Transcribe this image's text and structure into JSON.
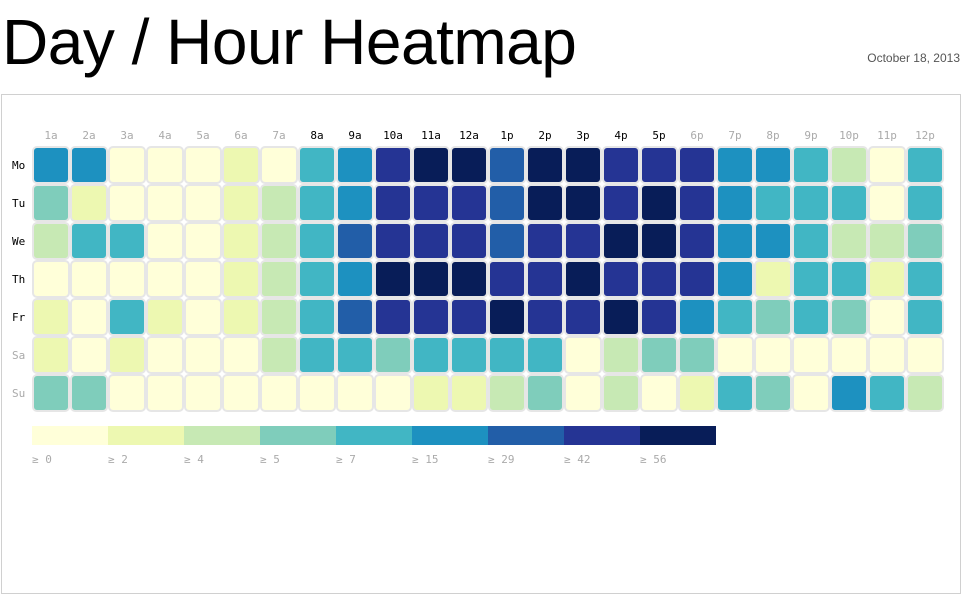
{
  "page": {
    "title": "Day / Hour Heatmap",
    "date": "October 18, 2013"
  },
  "chart_data": {
    "type": "heatmap",
    "title": "Day / Hour Heatmap",
    "x_labels": [
      "1a",
      "2a",
      "3a",
      "4a",
      "5a",
      "6a",
      "7a",
      "8a",
      "9a",
      "10a",
      "11a",
      "12a",
      "1p",
      "2p",
      "3p",
      "4p",
      "5p",
      "6p",
      "7p",
      "8p",
      "9p",
      "10p",
      "11p",
      "12p"
    ],
    "y_labels": [
      "Mo",
      "Tu",
      "We",
      "Th",
      "Fr",
      "Sa",
      "Su"
    ],
    "x_label_colors": [
      "#aaaaaa",
      "#aaaaaa",
      "#aaaaaa",
      "#aaaaaa",
      "#aaaaaa",
      "#aaaaaa",
      "#aaaaaa",
      "#000000",
      "#000000",
      "#000000",
      "#000000",
      "#000000",
      "#000000",
      "#000000",
      "#000000",
      "#000000",
      "#000000",
      "#aaaaaa",
      "#aaaaaa",
      "#aaaaaa",
      "#aaaaaa",
      "#aaaaaa",
      "#aaaaaa",
      "#aaaaaa"
    ],
    "y_label_colors": [
      "#000000",
      "#000000",
      "#000000",
      "#000000",
      "#000000",
      "#aaaaaa",
      "#aaaaaa"
    ],
    "values": [
      [
        15,
        15,
        0,
        0,
        0,
        2,
        0,
        7,
        15,
        42,
        56,
        56,
        29,
        56,
        56,
        42,
        42,
        42,
        15,
        15,
        7,
        4,
        0,
        7
      ],
      [
        5,
        2,
        0,
        0,
        0,
        2,
        4,
        7,
        15,
        42,
        42,
        42,
        29,
        56,
        56,
        42,
        56,
        42,
        15,
        7,
        7,
        7,
        0,
        7
      ],
      [
        4,
        7,
        7,
        0,
        0,
        2,
        4,
        7,
        29,
        42,
        42,
        42,
        29,
        42,
        42,
        56,
        56,
        42,
        15,
        15,
        7,
        4,
        4,
        5
      ],
      [
        0,
        0,
        0,
        0,
        0,
        2,
        4,
        7,
        15,
        56,
        56,
        56,
        42,
        42,
        56,
        42,
        42,
        42,
        15,
        2,
        7,
        7,
        2,
        7
      ],
      [
        2,
        0,
        7,
        2,
        0,
        2,
        4,
        7,
        29,
        42,
        42,
        42,
        56,
        42,
        42,
        56,
        42,
        15,
        7,
        5,
        7,
        5,
        0,
        7
      ],
      [
        2,
        0,
        2,
        0,
        0,
        0,
        4,
        7,
        7,
        5,
        7,
        7,
        7,
        7,
        0,
        4,
        5,
        5,
        0,
        0,
        0,
        0,
        0,
        0
      ],
      [
        5,
        5,
        0,
        0,
        0,
        0,
        0,
        0,
        0,
        0,
        2,
        2,
        4,
        5,
        0,
        4,
        0,
        2,
        7,
        5,
        0,
        15,
        7,
        4
      ]
    ],
    "legend": {
      "thresholds": [
        0,
        2,
        4,
        5,
        7,
        15,
        29,
        42,
        56
      ],
      "labels": [
        "≥ 0",
        "≥ 2",
        "≥ 4",
        "≥ 5",
        "≥ 7",
        "≥ 15",
        "≥ 29",
        "≥ 42",
        "≥ 56"
      ],
      "colors": [
        "#ffffd9",
        "#edf8b1",
        "#c7e9b4",
        "#7fcdbb",
        "#41b6c4",
        "#1d91c0",
        "#225ea8",
        "#253494",
        "#081d58"
      ]
    },
    "cell_border_color": "#e6e6e6"
  }
}
